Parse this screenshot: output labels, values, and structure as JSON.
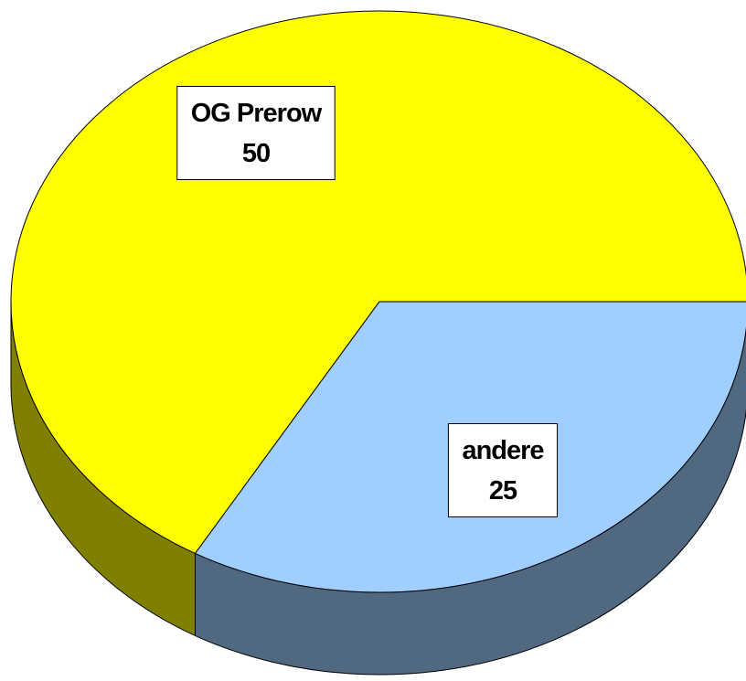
{
  "chart_data": {
    "type": "pie3d",
    "categories": [
      "OG Prerow",
      "andere"
    ],
    "values": [
      50,
      25
    ],
    "colors": [
      "#ffff00",
      "#a0cfff"
    ]
  }
}
